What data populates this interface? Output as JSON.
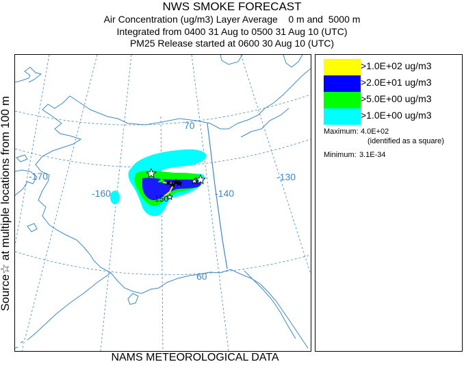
{
  "header": {
    "title": "NWS SMOKE FORECAST",
    "line1": "Air Concentration (ug/m3) Layer Average    0 m and  5000 m",
    "line2": "Integrated from 0400 31 Aug to 0500 31 Aug 10 (UTC)",
    "line3": "PM25 Release started at 0600 30 Aug 10 (UTC)"
  },
  "side_label": "Source☆ at multiple locations  from   100 m",
  "footer": "NAMS METEOROLOGICAL DATA",
  "map": {
    "lon_labels": [
      "-170",
      "-160",
      "-140",
      "-130"
    ],
    "lat_labels": [
      "70",
      "60"
    ],
    "plume_label": "-150",
    "colors": {
      "coast": "#3c88c4",
      "grid": "#3c88c4",
      "label": "#3c88c4"
    }
  },
  "legend": {
    "items": [
      {
        "label": ">1.0E+02 ug/m3",
        "color": "#ffff00"
      },
      {
        "label": ">2.0E+01 ug/m3",
        "color": "#0000ff"
      },
      {
        "label": ">5.0E+00 ug/m3",
        "color": "#00ff00"
      },
      {
        "label": ">1.0E+00 ug/m3",
        "color": "#00ffff"
      }
    ],
    "max_label": "Maximum:",
    "max_value": "4.0E+02",
    "max_note": "(identified as a square)",
    "min_label": "Minimum:",
    "min_value": "3.1E-34"
  }
}
